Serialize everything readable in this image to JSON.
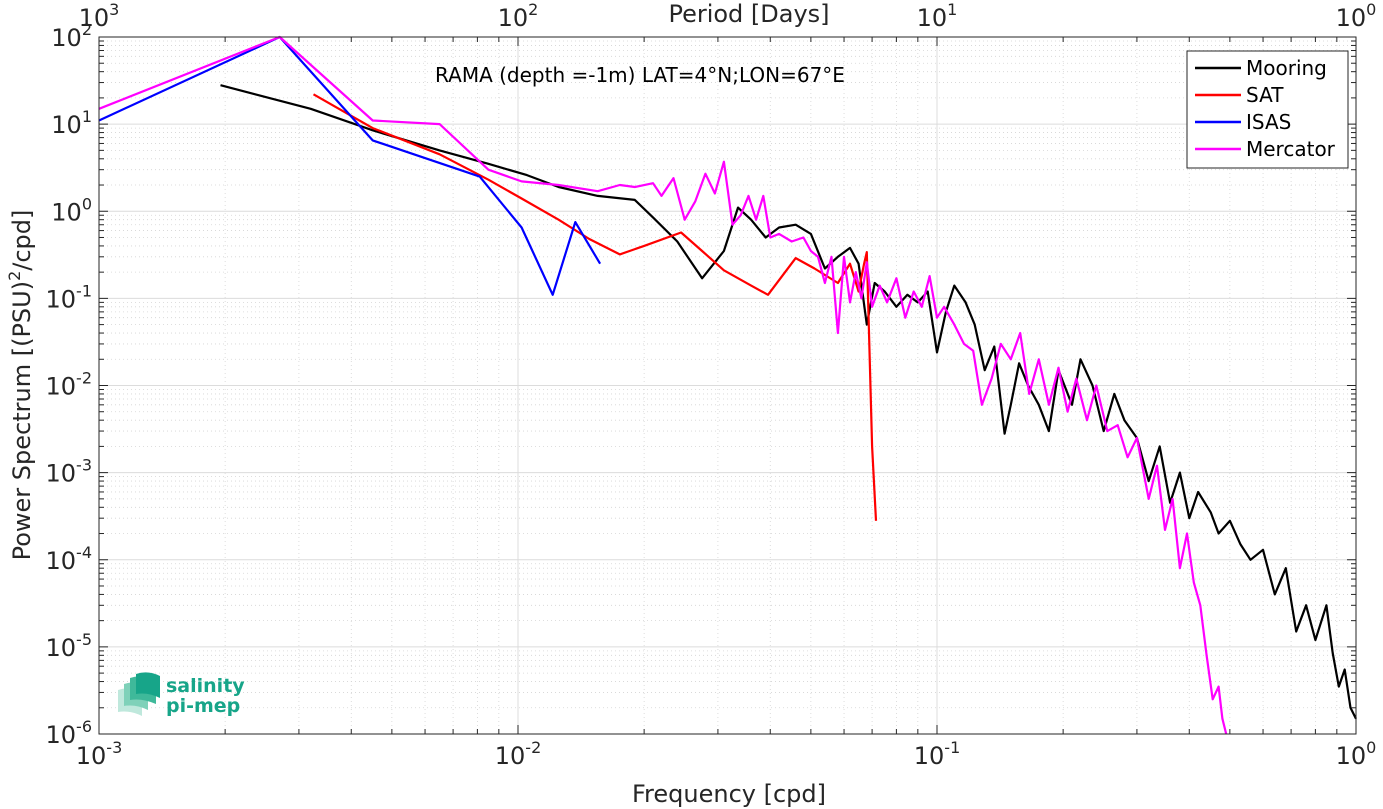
{
  "chart_data": {
    "type": "line",
    "title": "RAMA (depth =-1m) LAT=4°N;LON=67°E",
    "xlabel": "Frequency [cpd]",
    "ylabel": "Power Spectrum [(PSU)²/cpd]",
    "ylabel_parts": {
      "pre": "Power Spectrum [(PSU)",
      "sup": "2",
      "post": "/cpd]"
    },
    "top_xlabel": "Period [Days]",
    "x_scale": "log",
    "y_scale": "log",
    "xlim": [
      0.001,
      1
    ],
    "ylim": [
      1e-06,
      100
    ],
    "grid": true,
    "legend_position": "top-right",
    "x_ticks": [
      {
        "value": 0.001,
        "base": "10",
        "exp": "-3"
      },
      {
        "value": 0.01,
        "base": "10",
        "exp": "-2"
      },
      {
        "value": 0.1,
        "base": "10",
        "exp": "-1"
      },
      {
        "value": 1,
        "base": "10",
        "exp": "0"
      }
    ],
    "top_ticks": [
      {
        "value": 0.001,
        "base": "10",
        "exp": "3"
      },
      {
        "value": 0.01,
        "base": "10",
        "exp": "2"
      },
      {
        "value": 0.1,
        "base": "10",
        "exp": "1"
      },
      {
        "value": 1,
        "base": "10",
        "exp": "0"
      }
    ],
    "y_ticks": [
      {
        "value": 100,
        "base": "10",
        "exp": "2"
      },
      {
        "value": 10,
        "base": "10",
        "exp": "1"
      },
      {
        "value": 1,
        "base": "10",
        "exp": "0"
      },
      {
        "value": 0.1,
        "base": "10",
        "exp": "-1"
      },
      {
        "value": 0.01,
        "base": "10",
        "exp": "-2"
      },
      {
        "value": 0.001,
        "base": "10",
        "exp": "-3"
      },
      {
        "value": 0.0001,
        "base": "10",
        "exp": "-4"
      },
      {
        "value": 1e-05,
        "base": "10",
        "exp": "-5"
      },
      {
        "value": 1e-06,
        "base": "10",
        "exp": "-6"
      }
    ],
    "series": [
      {
        "name": "Mooring",
        "color": "#000000",
        "x": [
          0.00195,
          0.0032,
          0.0045,
          0.0065,
          0.0085,
          0.0105,
          0.0125,
          0.0155,
          0.019,
          0.021,
          0.024,
          0.0275,
          0.031,
          0.0335,
          0.036,
          0.039,
          0.042,
          0.046,
          0.05,
          0.054,
          0.058,
          0.062,
          0.065,
          0.068,
          0.071,
          0.075,
          0.08,
          0.085,
          0.09,
          0.095,
          0.1,
          0.105,
          0.11,
          0.117,
          0.123,
          0.13,
          0.137,
          0.145,
          0.15,
          0.157,
          0.165,
          0.175,
          0.185,
          0.195,
          0.21,
          0.22,
          0.235,
          0.25,
          0.265,
          0.28,
          0.3,
          0.32,
          0.34,
          0.36,
          0.38,
          0.4,
          0.42,
          0.45,
          0.47,
          0.5,
          0.53,
          0.56,
          0.6,
          0.64,
          0.68,
          0.72,
          0.76,
          0.8,
          0.85,
          0.88,
          0.91,
          0.94,
          0.97,
          1.0
        ],
        "y": [
          28,
          15,
          8.5,
          5,
          3.5,
          2.6,
          1.9,
          1.5,
          1.35,
          0.85,
          0.45,
          0.17,
          0.35,
          1.1,
          0.8,
          0.5,
          0.65,
          0.7,
          0.55,
          0.22,
          0.3,
          0.38,
          0.25,
          0.05,
          0.15,
          0.12,
          0.08,
          0.11,
          0.09,
          0.12,
          0.024,
          0.07,
          0.14,
          0.09,
          0.05,
          0.015,
          0.028,
          0.0028,
          0.006,
          0.018,
          0.01,
          0.006,
          0.003,
          0.015,
          0.006,
          0.02,
          0.01,
          0.003,
          0.008,
          0.004,
          0.0025,
          0.0008,
          0.002,
          0.00045,
          0.001,
          0.0003,
          0.0006,
          0.00035,
          0.0002,
          0.00028,
          0.00015,
          0.0001,
          0.00013,
          4e-05,
          8e-05,
          1.5e-05,
          3e-05,
          1.2e-05,
          3e-05,
          8.5e-06,
          3.5e-06,
          5.5e-06,
          2e-06,
          1.5e-06
        ]
      },
      {
        "name": "SAT",
        "color": "#ff0000",
        "x": [
          0.00325,
          0.0045,
          0.0065,
          0.0085,
          0.0102,
          0.0125,
          0.0148,
          0.0175,
          0.02,
          0.0245,
          0.0275,
          0.031,
          0.036,
          0.0395,
          0.046,
          0.051,
          0.058,
          0.062,
          0.065,
          0.067,
          0.068,
          0.07,
          0.0715
        ],
        "y": [
          22,
          9,
          4.5,
          2.3,
          1.4,
          0.8,
          0.48,
          0.32,
          0.4,
          0.57,
          0.35,
          0.21,
          0.14,
          0.11,
          0.29,
          0.22,
          0.15,
          0.25,
          0.12,
          0.25,
          0.34,
          0.002,
          0.00028
        ]
      },
      {
        "name": "ISAS",
        "color": "#0000ff",
        "x": [
          0.001,
          0.0027,
          0.0045,
          0.0081,
          0.0102,
          0.0121,
          0.0137,
          0.0157
        ],
        "y": [
          11,
          110,
          6.5,
          2.5,
          0.65,
          0.11,
          0.75,
          0.25
        ]
      },
      {
        "name": "Mercator",
        "color": "#ff00ff",
        "x": [
          0.001,
          0.0027,
          0.0045,
          0.0065,
          0.0085,
          0.0102,
          0.0125,
          0.0155,
          0.0175,
          0.019,
          0.021,
          0.022,
          0.0235,
          0.025,
          0.0265,
          0.028,
          0.0295,
          0.031,
          0.0325,
          0.034,
          0.0355,
          0.037,
          0.0385,
          0.04,
          0.042,
          0.045,
          0.048,
          0.05,
          0.052,
          0.054,
          0.056,
          0.058,
          0.06,
          0.062,
          0.064,
          0.066,
          0.068,
          0.07,
          0.073,
          0.076,
          0.08,
          0.084,
          0.088,
          0.092,
          0.096,
          0.1,
          0.104,
          0.11,
          0.116,
          0.122,
          0.128,
          0.135,
          0.142,
          0.15,
          0.158,
          0.166,
          0.175,
          0.185,
          0.195,
          0.205,
          0.215,
          0.228,
          0.24,
          0.255,
          0.27,
          0.285,
          0.3,
          0.32,
          0.335,
          0.35,
          0.365,
          0.38,
          0.395,
          0.41,
          0.425,
          0.44,
          0.455,
          0.47,
          0.48,
          0.49
        ],
        "y": [
          15,
          110,
          11,
          10,
          3,
          2.2,
          2,
          1.7,
          2,
          1.9,
          2.1,
          1.5,
          2.4,
          0.8,
          1.3,
          2.7,
          1.6,
          3.7,
          0.7,
          0.9,
          1.5,
          0.8,
          1.5,
          0.5,
          0.55,
          0.45,
          0.5,
          0.35,
          0.3,
          0.15,
          0.3,
          0.04,
          0.3,
          0.09,
          0.2,
          0.1,
          0.26,
          0.08,
          0.14,
          0.09,
          0.17,
          0.06,
          0.12,
          0.08,
          0.18,
          0.06,
          0.08,
          0.05,
          0.03,
          0.025,
          0.006,
          0.012,
          0.03,
          0.02,
          0.04,
          0.008,
          0.02,
          0.006,
          0.016,
          0.005,
          0.012,
          0.004,
          0.01,
          0.003,
          0.0035,
          0.0015,
          0.0025,
          0.0005,
          0.0012,
          0.00022,
          0.0005,
          8e-05,
          0.0002,
          5.5e-05,
          3e-05,
          8e-06,
          2.5e-06,
          3.5e-06,
          1.5e-06,
          1e-06
        ]
      }
    ]
  },
  "logo": {
    "line1": "salinity",
    "line2": "pi-mep",
    "color": "#17a589"
  }
}
